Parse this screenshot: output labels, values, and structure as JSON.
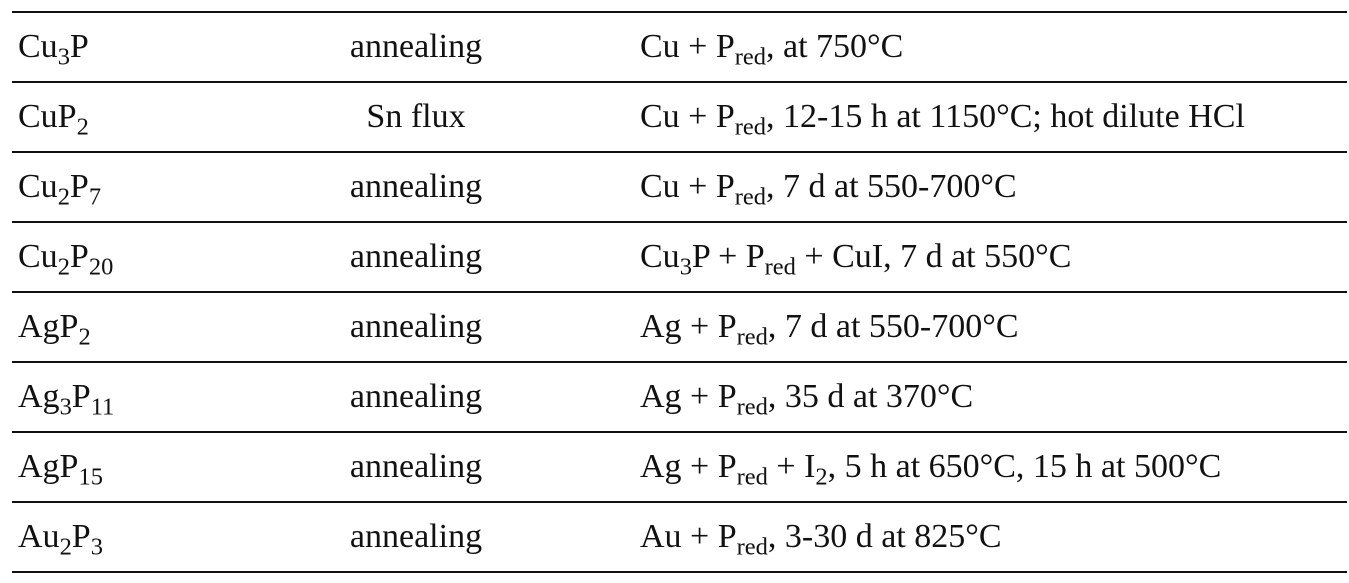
{
  "table": {
    "rows": [
      [
        [
          "Cu",
          {
            "sub": "3"
          },
          "P"
        ],
        [
          "annealing"
        ],
        [
          "Cu + P",
          {
            "sub": "red"
          },
          ", at 750°C"
        ]
      ],
      [
        [
          "CuP",
          {
            "sub": "2"
          }
        ],
        [
          "Sn flux"
        ],
        [
          "Cu + P",
          {
            "sub": "red"
          },
          ", 12-15 h at 1150°C; hot dilute HCl"
        ]
      ],
      [
        [
          "Cu",
          {
            "sub": "2"
          },
          "P",
          {
            "sub": "7"
          }
        ],
        [
          "annealing"
        ],
        [
          "Cu + P",
          {
            "sub": "red"
          },
          ", 7 d at 550-700°C"
        ]
      ],
      [
        [
          "Cu",
          {
            "sub": "2"
          },
          "P",
          {
            "sub": "20"
          }
        ],
        [
          "annealing"
        ],
        [
          "Cu",
          {
            "sub": "3"
          },
          "P + P",
          {
            "sub": "red"
          },
          " + CuI, 7 d at 550°C"
        ]
      ],
      [
        [
          "AgP",
          {
            "sub": "2"
          }
        ],
        [
          "annealing"
        ],
        [
          "Ag + P",
          {
            "sub": "red"
          },
          ", 7 d at 550-700°C"
        ]
      ],
      [
        [
          "Ag",
          {
            "sub": "3"
          },
          "P",
          {
            "sub": "11"
          }
        ],
        [
          "annealing"
        ],
        [
          "Ag + P",
          {
            "sub": "red"
          },
          ", 35 d at 370°C"
        ]
      ],
      [
        [
          "AgP",
          {
            "sub": "15"
          }
        ],
        [
          "annealing"
        ],
        [
          "Ag + P",
          {
            "sub": "red"
          },
          " + I",
          {
            "sub": "2"
          },
          ", 5 h at 650°C, 15 h at 500°C"
        ]
      ],
      [
        [
          "Au",
          {
            "sub": "2"
          },
          "P",
          {
            "sub": "3"
          }
        ],
        [
          "annealing"
        ],
        [
          "Au + P",
          {
            "sub": "red"
          },
          ", 3-30 d at 825°C"
        ]
      ]
    ]
  }
}
